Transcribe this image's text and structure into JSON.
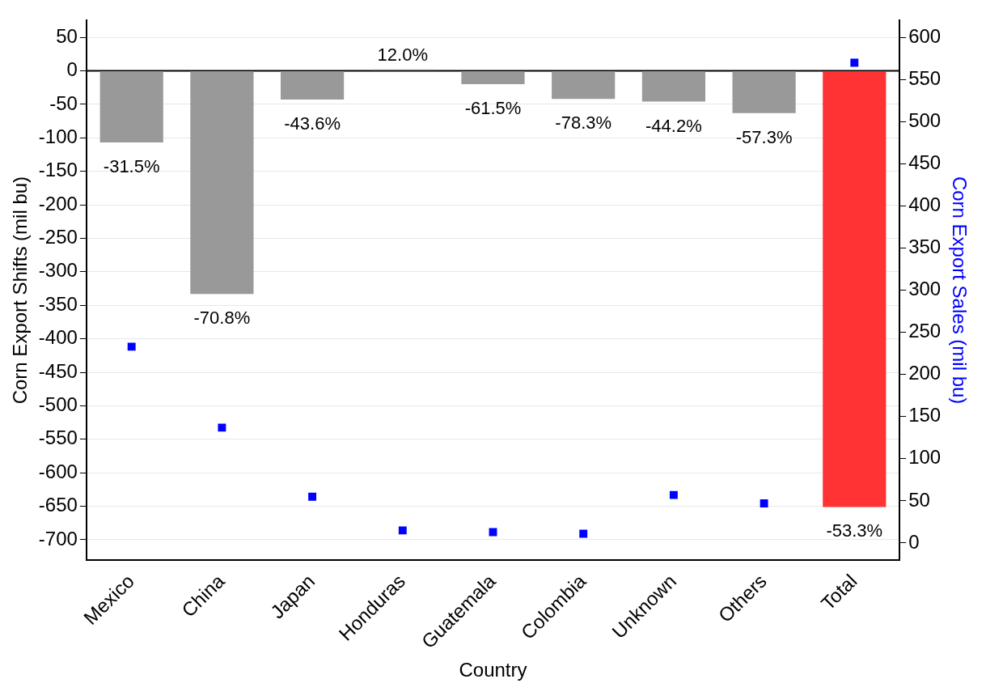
{
  "chart_data": {
    "type": "bar",
    "categories": [
      "Mexico",
      "China",
      "Japan",
      "Honduras",
      "Guatemala",
      "Colombia",
      "Unknown",
      "Others",
      "Total"
    ],
    "series": [
      {
        "colors": [
          "#999999",
          "#999999",
          "#999999",
          "#999999",
          "#999999",
          "#999999",
          "#999999",
          "#999999",
          "#ff3333"
        ],
        "values": [
          -107,
          -333,
          -43,
          2,
          -20,
          -42,
          -46,
          -63,
          -651
        ]
      },
      {
        "type": "scatter",
        "axis": "y2",
        "color": "#0000ff",
        "marker": "square",
        "values": [
          233,
          137,
          55,
          15,
          13,
          11,
          57,
          47,
          570
        ]
      }
    ],
    "annotations": [
      {
        "text": "-31.5%",
        "x": "Mexico",
        "y": -107
      },
      {
        "text": "-70.8%",
        "x": "China",
        "y": -333
      },
      {
        "text": "-43.6%",
        "x": "Japan",
        "y": -43
      },
      {
        "text": "12.0%",
        "x": "Honduras",
        "y": 2
      },
      {
        "text": "-61.5%",
        "x": "Guatemala",
        "y": -20
      },
      {
        "text": "-78.3%",
        "x": "Colombia",
        "y": -42
      },
      {
        "text": "-44.2%",
        "x": "Unknown",
        "y": -46
      },
      {
        "text": "-57.3%",
        "x": "Others",
        "y": -63
      },
      {
        "text": "-53.3%",
        "x": "Total",
        "y": -651
      }
    ],
    "xlabel": "Country",
    "ylabel": "Corn Export Shifts (mil bu)",
    "y2label": "Corn Export Sales (mil bu)",
    "ylim": [
      -730,
      75
    ],
    "yticks": [
      -700,
      -650,
      -600,
      -550,
      -500,
      -450,
      -400,
      -350,
      -300,
      -250,
      -200,
      -150,
      -100,
      -50,
      0,
      50
    ],
    "y2lim": [
      -20,
      620
    ],
    "y2ticks": [
      0,
      50,
      100,
      150,
      200,
      250,
      300,
      350,
      400,
      450,
      500,
      550,
      600
    ],
    "ref_lines": [
      {
        "axis": "y",
        "value": 0,
        "color": "#000000"
      }
    ],
    "grid": "y",
    "legend": false
  }
}
